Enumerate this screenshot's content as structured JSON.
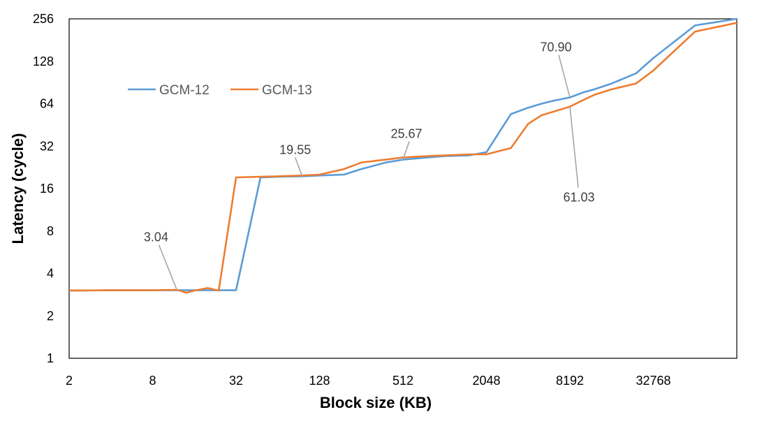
{
  "chart_data": {
    "type": "line",
    "title": "",
    "xlabel": "Block size (KB)",
    "ylabel": "Latency (cycle)",
    "x_scale": "log2",
    "y_scale": "log2",
    "xlim": [
      2,
      131072
    ],
    "ylim": [
      1,
      256
    ],
    "x_ticks": [
      "2",
      "8",
      "32",
      "128",
      "512",
      "2048",
      "8192",
      "32768"
    ],
    "y_ticks": [
      "1",
      "2",
      "4",
      "8",
      "16",
      "32",
      "64",
      "128",
      "256"
    ],
    "grid": false,
    "legend_position": "left",
    "series": [
      {
        "name": "GCM-12",
        "color": "#5B9BD5",
        "x": [
          2,
          4,
          8,
          12,
          16,
          24,
          32,
          48,
          64,
          96,
          128,
          192,
          256,
          384,
          512,
          768,
          1024,
          1536,
          2048,
          3072,
          4096,
          5120,
          6144,
          8192,
          10240,
          12288,
          16384,
          24576,
          32768,
          65536,
          131072
        ],
        "y": [
          3.02,
          3.04,
          3.04,
          3.04,
          3.04,
          3.04,
          3.04,
          19.2,
          19.4,
          19.55,
          19.8,
          20.1,
          22.0,
          24.5,
          25.67,
          26.6,
          27.2,
          27.5,
          29.0,
          54.0,
          60.0,
          64.0,
          67.0,
          70.9,
          77.0,
          81.0,
          89.0,
          105.0,
          135.0,
          230.0,
          262.0
        ]
      },
      {
        "name": "GCM-13",
        "color": "#ED7D31",
        "x": [
          2,
          4,
          8,
          12,
          14,
          16,
          20,
          24,
          32,
          48,
          64,
          96,
          128,
          192,
          256,
          384,
          512,
          768,
          1024,
          1536,
          2048,
          3072,
          4096,
          5120,
          6144,
          8192,
          10240,
          12288,
          16384,
          24576,
          32768,
          65536,
          131072
        ],
        "y": [
          3.02,
          3.04,
          3.04,
          3.06,
          2.92,
          3.02,
          3.15,
          3.02,
          19.2,
          19.4,
          19.55,
          19.8,
          20.1,
          22.0,
          24.5,
          25.67,
          26.6,
          27.2,
          27.5,
          28.0,
          28.0,
          31.0,
          46.0,
          53.0,
          56.0,
          61.03,
          68.0,
          74.0,
          81.0,
          89.0,
          110.0,
          208.0,
          240.0
        ]
      }
    ],
    "annotations": [
      {
        "text": "3.04",
        "x": 12,
        "y": 3.04
      },
      {
        "text": "19.55",
        "x": 96,
        "y": 19.55
      },
      {
        "text": "25.67",
        "x": 512,
        "y": 25.67
      },
      {
        "text": "70.90",
        "x": 8192,
        "y": 70.9
      },
      {
        "text": "61.03",
        "x": 8192,
        "y": 61.03
      }
    ]
  }
}
